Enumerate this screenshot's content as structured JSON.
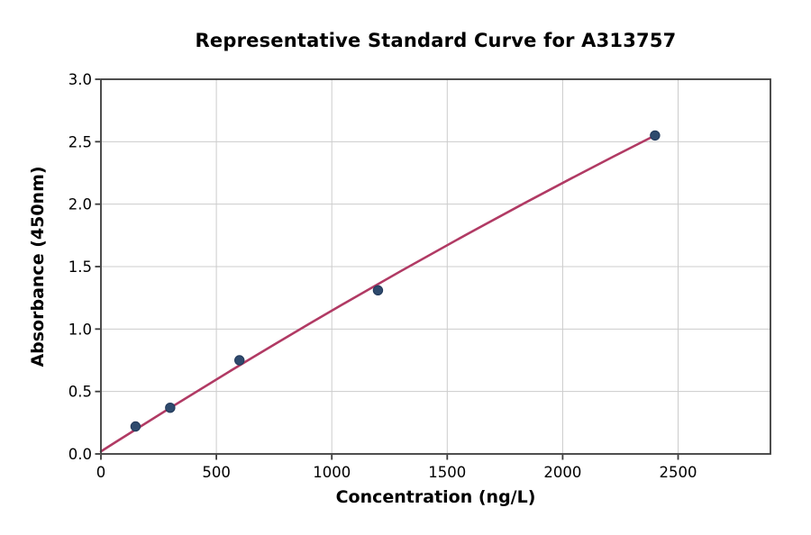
{
  "chart_data": {
    "type": "scatter",
    "title": "Representative Standard Curve for A313757",
    "xlabel": "Concentration (ng/L)",
    "ylabel": "Absorbance (450nm)",
    "xlim": [
      0,
      2900
    ],
    "ylim": [
      0,
      3.0
    ],
    "grid": true,
    "legend": "none",
    "x_ticks": [
      {
        "v": 0,
        "label": "0"
      },
      {
        "v": 500,
        "label": "500"
      },
      {
        "v": 1000,
        "label": "1000"
      },
      {
        "v": 1500,
        "label": "1500"
      },
      {
        "v": 2000,
        "label": "2000"
      },
      {
        "v": 2500,
        "label": "2500"
      }
    ],
    "y_ticks": [
      {
        "v": 0.0,
        "label": "0.0"
      },
      {
        "v": 0.5,
        "label": "0.5"
      },
      {
        "v": 1.0,
        "label": "1.0"
      },
      {
        "v": 1.5,
        "label": "1.5"
      },
      {
        "v": 2.0,
        "label": "2.0"
      },
      {
        "v": 2.5,
        "label": "2.5"
      },
      {
        "v": 3.0,
        "label": "3.0"
      }
    ],
    "series": [
      {
        "name": "standard-points",
        "type": "scatter",
        "points": [
          [
            150,
            0.22
          ],
          [
            300,
            0.37
          ],
          [
            600,
            0.75
          ],
          [
            1200,
            1.31
          ],
          [
            2400,
            2.55
          ]
        ]
      },
      {
        "name": "fit-line",
        "type": "quadratic-bezier",
        "p0": [
          0,
          0.02
        ],
        "control": [
          1200,
          1.435
        ],
        "p2": [
          2400,
          2.55
        ]
      }
    ],
    "colors": {
      "fit_line": "#b13a64",
      "marker_fill": "#2e4a6d",
      "marker_edge": "#22395a",
      "grid": "#cccccc",
      "spine": "#3a3a3a",
      "text": "#000000",
      "background": "#ffffff"
    }
  }
}
